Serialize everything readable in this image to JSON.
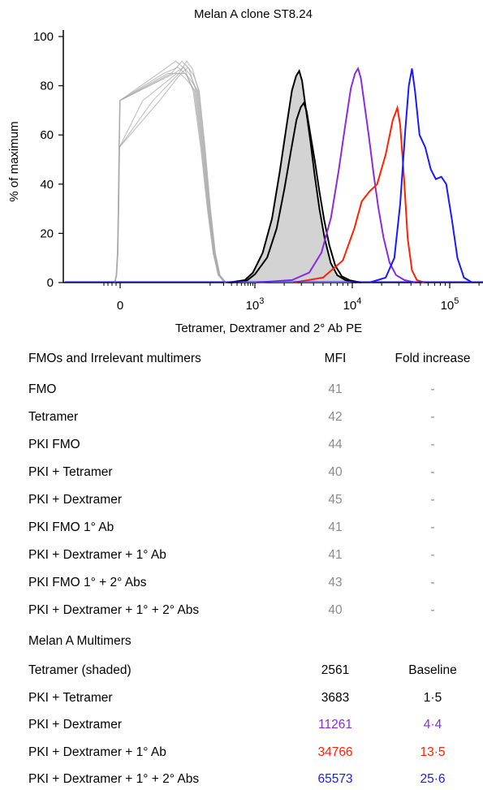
{
  "chart_data": {
    "type": "histogram_overlay",
    "title": "Melan A clone ST8.24",
    "xlabel": "Tetramer, Dextramer and 2° Ab PE",
    "ylabel": "% of maximum",
    "x_scale": "biexponential",
    "yticks": [
      0,
      20,
      40,
      60,
      80,
      100
    ],
    "ylim": [
      0,
      100
    ],
    "xticks": [
      {
        "value": 0,
        "label": "0"
      },
      {
        "value": 1000,
        "label": "10",
        "exp": "3"
      },
      {
        "value": 10000,
        "label": "10",
        "exp": "4"
      },
      {
        "value": 100000,
        "label": "10",
        "exp": "5"
      }
    ],
    "colors": {
      "fmo_irrelevant": "#aaaaaa",
      "tetramer": "#000000",
      "tetramer_fill": "#d3d3d3",
      "pki_tetramer": "#000000",
      "pki_dextramer": "#8a2be2",
      "pki_dextramer_1ab": "#ff2200",
      "pki_dextramer_1_2ab": "#1a1aff"
    },
    "series": [
      {
        "key": "fmo_irrelevant",
        "mode": 30,
        "peak": 90,
        "count": 8
      },
      {
        "key": "tetramer",
        "shaded": true,
        "mfi": 2561,
        "peak": 86
      },
      {
        "key": "pki_tetramer",
        "mfi": 3683,
        "peak": 73
      },
      {
        "key": "pki_dextramer",
        "mfi": 11261,
        "peak": 87
      },
      {
        "key": "pki_dextramer_1ab",
        "mfi": 34766,
        "peak": 71
      },
      {
        "key": "pki_dextramer_1_2ab",
        "mfi": 65573,
        "peak": 87
      }
    ]
  },
  "table": {
    "section1": {
      "title": "FMOs and Irrelevant multimers",
      "mfi_header": "MFI",
      "fold_header": "Fold increase",
      "rows": [
        {
          "name": "FMO",
          "mfi": "41",
          "fold": "-"
        },
        {
          "name": "Tetramer",
          "mfi": "42",
          "fold": "-"
        },
        {
          "name": "PKI FMO",
          "mfi": "44",
          "fold": "-"
        },
        {
          "name": "PKI + Tetramer",
          "mfi": "40",
          "fold": "-"
        },
        {
          "name": "PKI + Dextramer",
          "mfi": "45",
          "fold": "-"
        },
        {
          "name": "PKI FMO 1° Ab",
          "mfi": "41",
          "fold": "-"
        },
        {
          "name": "PKI + Dextramer + 1° Ab",
          "mfi": "41",
          "fold": "-"
        },
        {
          "name": "PKI FMO  1° + 2° Abs",
          "mfi": "43",
          "fold": "-"
        },
        {
          "name": "PKI + Dextramer + 1° + 2° Abs",
          "mfi": "40",
          "fold": "-"
        }
      ]
    },
    "section2": {
      "title": "Melan A Multimers",
      "rows": [
        {
          "name": "Tetramer (shaded)",
          "mfi": "2561",
          "fold": "Baseline",
          "color": "#000000"
        },
        {
          "name": "PKI + Tetramer",
          "mfi": "3683",
          "fold": "1·5",
          "color": "#000000"
        },
        {
          "name": "PKI + Dextramer",
          "mfi": "11261",
          "fold": "4·4",
          "color": "#8a2be2"
        },
        {
          "name": "PKI + Dextramer + 1° Ab",
          "mfi": "34766",
          "fold": "13·5",
          "color": "#ff2200"
        },
        {
          "name": "PKI + Dextramer + 1° + 2° Abs",
          "mfi": "65573",
          "fold": "25·6",
          "color": "#1a1aff"
        }
      ]
    },
    "muted_color": "#8c8c8c"
  }
}
